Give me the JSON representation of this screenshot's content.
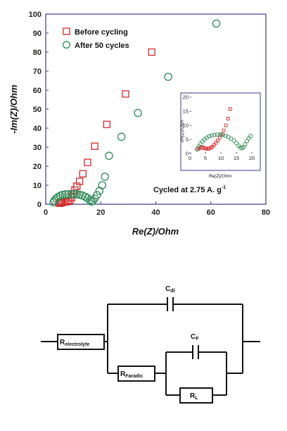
{
  "chart_data": [
    {
      "type": "scatter",
      "xlabel": "Re(Z)/Ohm",
      "ylabel": "-Im(Z)/Ohm",
      "xlim": [
        0,
        80
      ],
      "ylim": [
        0,
        100
      ],
      "xticks": [
        "0",
        "20",
        "40",
        "60",
        "80"
      ],
      "yticks": [
        "0",
        "10",
        "20",
        "30",
        "40",
        "50",
        "60",
        "70",
        "80",
        "90",
        "100"
      ],
      "grid": false,
      "legend_position": "top-left",
      "annotation": "Cycled at 2.75 A. g",
      "annotation_superscript": "-1",
      "series": [
        {
          "name": "Before cycling",
          "marker": "square",
          "color": "#d62728",
          "x": [
            4.8,
            5.2,
            5.6,
            6.0,
            6.5,
            7.0,
            7.6,
            8.2,
            8.8,
            9.4,
            10.0,
            10.6,
            11.3,
            12.3,
            13.5,
            15.2,
            17.8,
            22.2,
            29.0,
            38.5
          ],
          "y": [
            0.8,
            0.5,
            0.7,
            1.0,
            1.2,
            1.3,
            1.3,
            1.5,
            2.0,
            3.5,
            5.5,
            7.5,
            9.5,
            12.0,
            16.0,
            22.0,
            30.5,
            42.0,
            58.0,
            80.0
          ]
        },
        {
          "name": "After 50 cycles",
          "marker": "circle",
          "color": "#2e8b57",
          "x": [
            2.8,
            3.2,
            3.8,
            4.5,
            5.3,
            6.2,
            7.2,
            8.2,
            9.3,
            10.3,
            11.3,
            12.3,
            13.3,
            14.3,
            15.2,
            16.0,
            16.6,
            17.1,
            17.8,
            18.6,
            19.5,
            20.5,
            21.5,
            23.0,
            27.5,
            33.5,
            44.5,
            62.0
          ],
          "y": [
            1.0,
            2.0,
            3.0,
            3.8,
            4.5,
            5.0,
            5.2,
            5.3,
            5.3,
            5.3,
            5.2,
            5.0,
            4.6,
            4.0,
            3.2,
            2.2,
            1.4,
            1.8,
            3.0,
            4.8,
            7.0,
            10.0,
            14.5,
            25.5,
            35.5,
            48.0,
            67.0,
            95.0
          ]
        }
      ]
    },
    {
      "type": "scatter",
      "position": "inset",
      "xlabel": "Re(Z)/Ohm",
      "ylabel": "-Im(Z)/Ohm",
      "xlim": [
        0,
        20
      ],
      "ylim": [
        0,
        20
      ],
      "xticks": [
        "0",
        "5",
        "10",
        "15",
        "20"
      ],
      "yticks": [
        "0",
        "5",
        "10",
        "15",
        "20"
      ],
      "series": [
        {
          "name": "Before cycling",
          "marker": "square",
          "color": "#d62728",
          "x": [
            2.5,
            3.0,
            3.5,
            4.0,
            4.5,
            5.0,
            5.4,
            5.8,
            6.2,
            6.7,
            7.2,
            7.8,
            8.4,
            9.0,
            9.6,
            10.2,
            10.9,
            11.6,
            12.3,
            13.0
          ],
          "y": [
            1.5,
            1.9,
            2.1,
            2.2,
            2.0,
            1.8,
            1.7,
            1.7,
            1.8,
            2.0,
            2.4,
            3.0,
            3.8,
            4.6,
            5.6,
            6.8,
            8.2,
            10.0,
            12.4,
            15.8
          ]
        },
        {
          "name": "After 50 cycles",
          "marker": "circle",
          "color": "#2e8b57",
          "x": [
            2.3,
            2.8,
            3.4,
            4.0,
            4.7,
            5.4,
            6.2,
            7.0,
            7.9,
            8.8,
            9.7,
            10.6,
            11.5,
            12.4,
            13.3,
            14.2,
            15.0,
            15.7,
            16.3,
            16.8,
            17.3,
            17.8,
            18.4,
            19.0,
            19.6
          ],
          "y": [
            1.5,
            2.5,
            3.5,
            4.3,
            5.0,
            5.6,
            6.1,
            6.4,
            6.6,
            6.7,
            6.7,
            6.6,
            6.3,
            5.9,
            5.3,
            4.6,
            3.7,
            2.8,
            2.1,
            1.9,
            2.3,
            3.2,
            4.4,
            5.4,
            6.2
          ]
        }
      ]
    }
  ],
  "circuit": {
    "r_electrolyte": {
      "main": "R",
      "sub": "electrolyte"
    },
    "c_dl": {
      "main": "C",
      "sub": "dl"
    },
    "r_faradic": {
      "main": "R",
      "sub": "Faradic"
    },
    "c_f": {
      "main": "C",
      "sub": "F"
    },
    "r_l": {
      "main": "R",
      "sub": "L"
    }
  }
}
